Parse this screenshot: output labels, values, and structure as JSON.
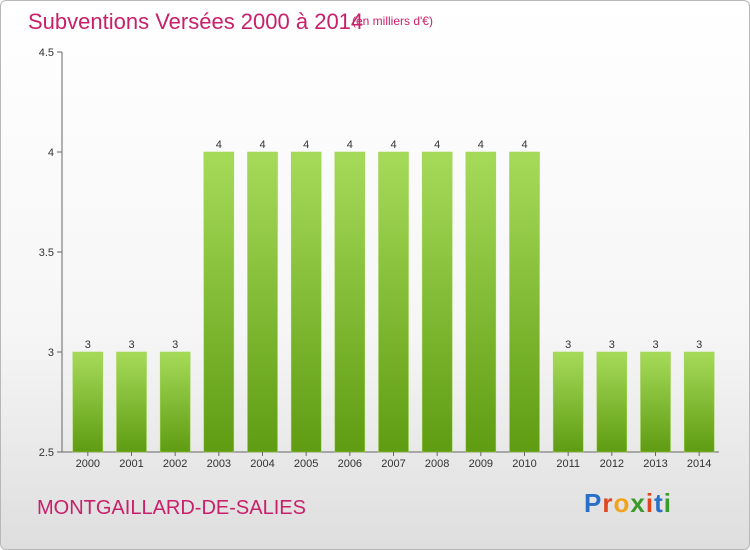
{
  "header": {
    "title": "Subventions Versées 2000 à 2014",
    "subtitle": "(en milliers d'€)"
  },
  "footer": {
    "commune": "MONTGAILLARD-DE-SALIES",
    "logo_letters": [
      "P",
      "r",
      "o",
      "x",
      "i",
      "t",
      "i"
    ],
    "logo_colors": [
      "#2a6fc9",
      "#e0451f",
      "#f2a31b",
      "#3a9a2a",
      "#e0451f",
      "#2a6fc9",
      "#3a9a2a"
    ]
  },
  "colors": {
    "title": "#c8206a",
    "bar_top": "#a6db5a",
    "bar_bottom": "#5f9c12",
    "axis": "#666666",
    "grid": "#dddddd"
  },
  "chart_data": {
    "type": "bar",
    "title": "Subventions Versées 2000 à 2014",
    "subtitle": "(en milliers d'€)",
    "categories": [
      "2000",
      "2001",
      "2002",
      "2003",
      "2004",
      "2005",
      "2006",
      "2007",
      "2008",
      "2009",
      "2010",
      "2011",
      "2012",
      "2013",
      "2014"
    ],
    "values": [
      3,
      3,
      3,
      4,
      4,
      4,
      4,
      4,
      4,
      4,
      4,
      3,
      3,
      3,
      3
    ],
    "data_labels": [
      "3",
      "3",
      "3",
      "4",
      "4",
      "4",
      "4",
      "4",
      "4",
      "4",
      "4",
      "3",
      "3",
      "3",
      "3"
    ],
    "ylim": [
      2.5,
      4.5
    ],
    "yticks": [
      2.5,
      3,
      3.5,
      4,
      4.5
    ],
    "ytick_labels": [
      "2.5",
      "3",
      "3.5",
      "4",
      "4.5"
    ],
    "xlabel": "",
    "ylabel": "",
    "grid": false,
    "legend": "none"
  }
}
